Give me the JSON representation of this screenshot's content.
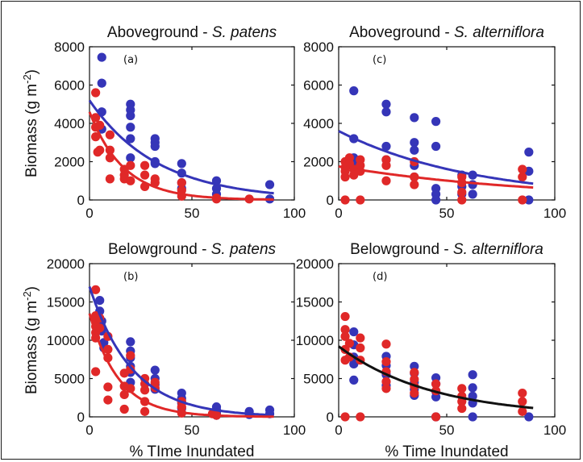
{
  "figure": {
    "colors": {
      "s_patens_high": "#3535b8",
      "s_patens_low": "#e02828",
      "combined_fit": "#111111"
    }
  },
  "chart_data": [
    {
      "type": "scatter",
      "panel_label": "(a)",
      "title_prefix": "Aboveground - ",
      "title_species": "S. patens",
      "xlabel": "",
      "ylabel": "Biomass (g m",
      "ylabel_sup": "-2",
      "ylabel_suffix": ")",
      "xlim": [
        0,
        100
      ],
      "ylim": [
        0,
        8000
      ],
      "xticks": [
        0,
        50,
        100
      ],
      "yticks": [
        0,
        2000,
        4000,
        6000,
        8000
      ],
      "series": [
        {
          "color": "#3535b8",
          "points": [
            [
              6,
              7450
            ],
            [
              6,
              6100
            ],
            [
              6,
              4600
            ],
            [
              6,
              3700
            ],
            [
              20,
              5000
            ],
            [
              20,
              4700
            ],
            [
              20,
              4400
            ],
            [
              20,
              3800
            ],
            [
              20,
              3200
            ],
            [
              20,
              2200
            ],
            [
              32,
              3200
            ],
            [
              32,
              3000
            ],
            [
              32,
              2800
            ],
            [
              32,
              2000
            ],
            [
              32,
              1900
            ],
            [
              45,
              1900
            ],
            [
              45,
              1400
            ],
            [
              45,
              900
            ],
            [
              45,
              600
            ],
            [
              62,
              1000
            ],
            [
              62,
              600
            ],
            [
              62,
              300
            ],
            [
              88,
              800
            ],
            [
              88,
              50
            ]
          ],
          "fit": {
            "a": 5200,
            "k": 0.03
          }
        },
        {
          "color": "#e02828",
          "points": [
            [
              3,
              5600
            ],
            [
              3,
              4300
            ],
            [
              3,
              3800
            ],
            [
              3,
              3300
            ],
            [
              4,
              2500
            ],
            [
              5,
              3900
            ],
            [
              5,
              2600
            ],
            [
              10,
              3400
            ],
            [
              10,
              2600
            ],
            [
              10,
              2200
            ],
            [
              10,
              1100
            ],
            [
              17,
              1600
            ],
            [
              17,
              1300
            ],
            [
              17,
              1100
            ],
            [
              20,
              1800
            ],
            [
              20,
              1000
            ],
            [
              27,
              1800
            ],
            [
              27,
              1300
            ],
            [
              27,
              700
            ],
            [
              32,
              1100
            ],
            [
              32,
              900
            ],
            [
              45,
              900
            ],
            [
              45,
              500
            ],
            [
              45,
              200
            ],
            [
              62,
              100
            ],
            [
              62,
              50
            ],
            [
              78,
              50
            ]
          ],
          "fit": {
            "a": 4600,
            "k": 0.06
          }
        }
      ]
    },
    {
      "type": "scatter",
      "panel_label": "(c)",
      "title_prefix": "Aboveground - ",
      "title_species": "S. alterniflora",
      "xlabel": "",
      "ylabel": "",
      "xlim": [
        0,
        100
      ],
      "ylim": [
        0,
        8000
      ],
      "xticks": [
        0,
        50,
        100
      ],
      "yticks": [
        0,
        2000,
        4000,
        6000,
        8000
      ],
      "series": [
        {
          "color": "#3535b8",
          "points": [
            [
              7,
              5700
            ],
            [
              7,
              3200
            ],
            [
              7,
              2200
            ],
            [
              7,
              1800
            ],
            [
              22,
              5000
            ],
            [
              22,
              4600
            ],
            [
              22,
              2800
            ],
            [
              22,
              2100
            ],
            [
              35,
              4300
            ],
            [
              35,
              3000
            ],
            [
              35,
              2600
            ],
            [
              35,
              1800
            ],
            [
              35,
              1200
            ],
            [
              45,
              4100
            ],
            [
              45,
              2800
            ],
            [
              45,
              600
            ],
            [
              45,
              300
            ],
            [
              45,
              0
            ],
            [
              57,
              1300
            ],
            [
              57,
              700
            ],
            [
              57,
              300
            ],
            [
              62,
              1300
            ],
            [
              62,
              800
            ],
            [
              62,
              300
            ],
            [
              88,
              2500
            ],
            [
              88,
              1500
            ],
            [
              88,
              0
            ]
          ],
          "fit": {
            "a": 3600,
            "k": 0.016
          }
        },
        {
          "color": "#e02828",
          "points": [
            [
              3,
              2000
            ],
            [
              3,
              1700
            ],
            [
              3,
              1500
            ],
            [
              3,
              1200
            ],
            [
              3,
              0
            ],
            [
              5,
              2200
            ],
            [
              5,
              1900
            ],
            [
              7,
              1600
            ],
            [
              7,
              1300
            ],
            [
              10,
              2100
            ],
            [
              10,
              1800
            ],
            [
              10,
              1500
            ],
            [
              10,
              0
            ],
            [
              22,
              2100
            ],
            [
              22,
              1800
            ],
            [
              22,
              1000
            ],
            [
              35,
              2000
            ],
            [
              35,
              1200
            ],
            [
              35,
              800
            ],
            [
              57,
              1200
            ],
            [
              57,
              900
            ],
            [
              57,
              400
            ],
            [
              57,
              0
            ],
            [
              85,
              1600
            ],
            [
              85,
              1200
            ],
            [
              85,
              0
            ]
          ],
          "fit": {
            "a": 1750,
            "k": 0.011
          }
        }
      ]
    },
    {
      "type": "scatter",
      "panel_label": "(b)",
      "title_prefix": "Belowground - ",
      "title_species": "S. patens",
      "xlabel": "% TIme Inundated",
      "ylabel": "Biomass (g m",
      "ylabel_sup": "-2",
      "ylabel_suffix": ")",
      "xlim": [
        0,
        100
      ],
      "ylim": [
        0,
        20000
      ],
      "xticks": [
        0,
        50,
        100
      ],
      "yticks": [
        0,
        5000,
        10000,
        15000,
        20000
      ],
      "series": [
        {
          "color": "#3535b8",
          "points": [
            [
              5,
              15200
            ],
            [
              5,
              13800
            ],
            [
              6,
              12500
            ],
            [
              6,
              11200
            ],
            [
              7,
              9700
            ],
            [
              7,
              9000
            ],
            [
              20,
              9800
            ],
            [
              20,
              8600
            ],
            [
              20,
              7700
            ],
            [
              20,
              6600
            ],
            [
              20,
              5800
            ],
            [
              20,
              4500
            ],
            [
              32,
              6100
            ],
            [
              32,
              5000
            ],
            [
              32,
              4200
            ],
            [
              32,
              3600
            ],
            [
              45,
              3100
            ],
            [
              45,
              2400
            ],
            [
              45,
              1800
            ],
            [
              45,
              1100
            ],
            [
              62,
              1300
            ],
            [
              62,
              900
            ],
            [
              62,
              500
            ],
            [
              62,
              200
            ],
            [
              78,
              700
            ],
            [
              78,
              300
            ],
            [
              88,
              900
            ],
            [
              88,
              400
            ]
          ],
          "fit": {
            "a": 17000,
            "k": 0.048
          }
        },
        {
          "color": "#e02828",
          "points": [
            [
              3,
              16600
            ],
            [
              3,
              13200
            ],
            [
              3,
              12500
            ],
            [
              3,
              11800
            ],
            [
              3,
              11000
            ],
            [
              3,
              10300
            ],
            [
              3,
              5900
            ],
            [
              5,
              12900
            ],
            [
              5,
              11600
            ],
            [
              9,
              10500
            ],
            [
              9,
              8800
            ],
            [
              9,
              7700
            ],
            [
              9,
              3900
            ],
            [
              9,
              2200
            ],
            [
              17,
              5700
            ],
            [
              17,
              4000
            ],
            [
              17,
              2900
            ],
            [
              17,
              1000
            ],
            [
              20,
              8000
            ],
            [
              20,
              6200
            ],
            [
              20,
              3700
            ],
            [
              27,
              5000
            ],
            [
              27,
              4300
            ],
            [
              27,
              3500
            ],
            [
              27,
              2000
            ],
            [
              27,
              700
            ],
            [
              32,
              4500
            ],
            [
              32,
              3800
            ],
            [
              45,
              2000
            ],
            [
              45,
              1300
            ],
            [
              45,
              500
            ],
            [
              60,
              400
            ],
            [
              62,
              200
            ]
          ],
          "fit": {
            "a": 13500,
            "k": 0.07
          }
        }
      ]
    },
    {
      "type": "scatter",
      "panel_label": "(d)",
      "title_prefix": "Belowground - ",
      "title_species": "S. alterniflora",
      "xlabel": "% Time Inundated",
      "ylabel": "",
      "xlim": [
        0,
        100
      ],
      "ylim": [
        0,
        20000
      ],
      "xticks": [
        0,
        50,
        100
      ],
      "yticks": [
        0,
        5000,
        10000,
        15000,
        20000
      ],
      "series": [
        {
          "color": "#3535b8",
          "points": [
            [
              7,
              11100
            ],
            [
              7,
              9400
            ],
            [
              7,
              7800
            ],
            [
              7,
              6900
            ],
            [
              7,
              4800
            ],
            [
              22,
              7900
            ],
            [
              22,
              6700
            ],
            [
              22,
              5500
            ],
            [
              22,
              4100
            ],
            [
              35,
              6600
            ],
            [
              35,
              5700
            ],
            [
              35,
              4500
            ],
            [
              35,
              3600
            ],
            [
              35,
              2800
            ],
            [
              45,
              5100
            ],
            [
              45,
              4300
            ],
            [
              45,
              3300
            ],
            [
              45,
              2600
            ],
            [
              45,
              0
            ],
            [
              62,
              5500
            ],
            [
              62,
              3800
            ],
            [
              62,
              2700
            ],
            [
              62,
              1800
            ],
            [
              62,
              0
            ],
            [
              88,
              0
            ]
          ],
          "fit": null
        },
        {
          "color": "#e02828",
          "points": [
            [
              3,
              13100
            ],
            [
              3,
              11400
            ],
            [
              3,
              10500
            ],
            [
              3,
              8800
            ],
            [
              3,
              7400
            ],
            [
              3,
              0
            ],
            [
              5,
              9600
            ],
            [
              5,
              7800
            ],
            [
              10,
              10300
            ],
            [
              10,
              9000
            ],
            [
              10,
              7400
            ],
            [
              10,
              0
            ],
            [
              22,
              9500
            ],
            [
              22,
              7200
            ],
            [
              22,
              5900
            ],
            [
              22,
              4600
            ],
            [
              22,
              3700
            ],
            [
              35,
              5800
            ],
            [
              35,
              4900
            ],
            [
              35,
              4000
            ],
            [
              35,
              3100
            ],
            [
              45,
              4300
            ],
            [
              45,
              3400
            ],
            [
              45,
              0
            ],
            [
              57,
              3700
            ],
            [
              57,
              2700
            ],
            [
              57,
              2000
            ],
            [
              57,
              1100
            ],
            [
              85,
              3100
            ],
            [
              85,
              2000
            ],
            [
              85,
              700
            ]
          ],
          "fit": null
        },
        {
          "color": "#111111",
          "points": [],
          "fit": {
            "a": 9200,
            "k": 0.023
          }
        }
      ]
    }
  ]
}
